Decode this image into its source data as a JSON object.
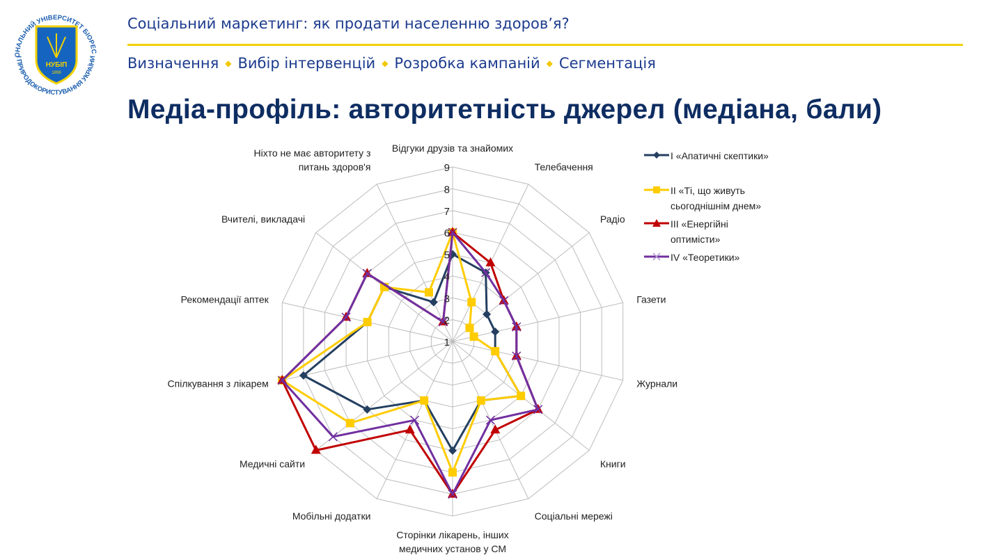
{
  "header": {
    "course_title": "Соціальний маркетинг: як продати населенню здоров’я?",
    "nav": [
      "Визначення",
      "Вибір інтервенцій",
      "Розробка кампаній",
      "Сегментація"
    ],
    "slide_title": "Медіа-профіль: авторитетність джерел  (медіана, бали)"
  },
  "logo": {
    "ring_text_top": "НАЦІОНАЛЬНИЙ УНІВЕРСИТЕТ БІОРЕСУРСІВ",
    "ring_text_bottom": "І ПРИРОДОКОРИСТУВАННЯ УКРАЇНИ",
    "abbr": "НУБІП",
    "year": "1898"
  },
  "chart_data": {
    "type": "radar",
    "title": "",
    "categories": [
      "Відгуки друзів та знайомих",
      "Телебачення",
      "Радіо",
      "Газети",
      "Журнали",
      "Книги",
      "Соціальні мережі",
      "Сторінки лікарень, інших\nмедичних установ у СМ",
      "Мобільні додатки",
      "Медичні сайти",
      "Спілкування з лікарем",
      "Рекомендації аптек",
      "Вчителі, викладачі",
      "Ніхто не має авторитету з\nпитань здоров'я"
    ],
    "axis_range": [
      1,
      9
    ],
    "ticks": [
      "1",
      "2",
      "3",
      "4",
      "5",
      "6",
      "7",
      "8",
      "9"
    ],
    "grid": true,
    "legend_position": "right",
    "series": [
      {
        "name": "I «Апатичні скептики»",
        "color": "#243f60",
        "marker": "diamond",
        "values": [
          5,
          4.5,
          3,
          3,
          3,
          5,
          4,
          6,
          4,
          6,
          8,
          5,
          5,
          3
        ]
      },
      {
        "name": "II «Ті, що живуть сьогоднішнім днем»",
        "color": "#ffcc00",
        "marker": "square",
        "values": [
          6,
          3,
          2,
          2,
          3,
          5,
          4,
          7,
          4,
          7,
          9,
          5,
          5,
          3.5
        ]
      },
      {
        "name": "III «Енергійні оптимісти»",
        "color": "#c00000",
        "marker": "triangle",
        "values": [
          6,
          5,
          4,
          4,
          4,
          6,
          5.5,
          8,
          5.5,
          9,
          9,
          6,
          6,
          2
        ]
      },
      {
        "name": "IV «Теоретики»",
        "color": "#7030a0",
        "marker": "x",
        "values": [
          6,
          4.5,
          4,
          4,
          4,
          6,
          5,
          8,
          5,
          8,
          9,
          6,
          6,
          2
        ]
      }
    ]
  }
}
